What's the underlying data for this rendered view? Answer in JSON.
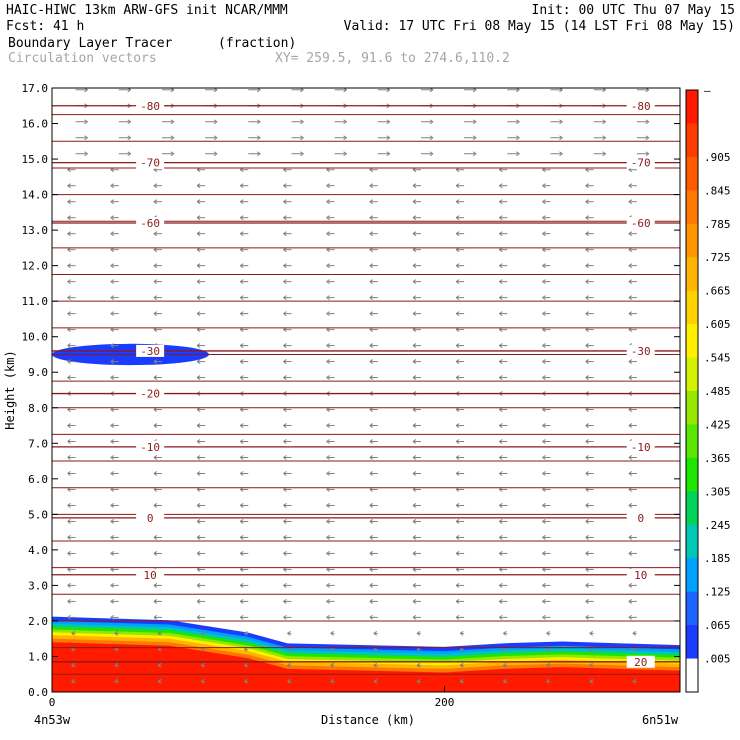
{
  "header": {
    "left_line1": "HAIC-HIWC 13km ARW-GFS init   NCAR/MMM",
    "left_line2": "Fcst:   41 h",
    "right_line1": "Init: 00 UTC Thu 07 May 15",
    "right_line2": "Valid: 17 UTC Fri 08 May 15 (14 LST Fri 08 May 15)",
    "field_name": "Boundary Layer Tracer",
    "field_units": "(fraction)",
    "vector_label": "Circulation vectors",
    "xy_label": "XY= 259.5, 91.6 to 274.6,110.2"
  },
  "colors": {
    "contour": "#8b1a1a",
    "vector": "#808080",
    "field_high": "#ff1a00",
    "field_low": "#1a3cff"
  },
  "chart_data": {
    "type": "heatmap",
    "title": "Boundary Layer Tracer",
    "xlabel": "Distance (km)",
    "ylabel": "Height (km)",
    "xlim": [
      0,
      320
    ],
    "ylim": [
      0,
      17
    ],
    "x_ticks": [
      {
        "value": 0,
        "label": "0"
      },
      {
        "value": 200,
        "label": "200"
      }
    ],
    "x_end_labels": {
      "left": "4n53w",
      "right": "6n51w"
    },
    "y_ticks": [
      "0.0",
      "1.0",
      "2.0",
      "3.0",
      "4.0",
      "5.0",
      "6.0",
      "7.0",
      "8.0",
      "9.0",
      "10.0",
      "11.0",
      "12.0",
      "13.0",
      "14.0",
      "15.0",
      "16.0",
      "17.0"
    ],
    "colorbar": {
      "top_label": "–",
      "labels": [
        ".905",
        ".845",
        ".785",
        ".725",
        ".665",
        ".605",
        ".545",
        ".485",
        ".425",
        ".365",
        ".305",
        ".245",
        ".185",
        ".125",
        ".065",
        ".005"
      ],
      "colors": [
        "#ff1a00",
        "#ff3c00",
        "#ff5a00",
        "#ff7800",
        "#ff9600",
        "#ffb400",
        "#ffd200",
        "#fff000",
        "#d2f000",
        "#96e600",
        "#5ae600",
        "#1ee600",
        "#00d25a",
        "#00c8b4",
        "#00a0ff",
        "#1e64ff",
        "#1a3cff",
        "#ffffff"
      ]
    },
    "temperature_contours": {
      "levels": [
        {
          "value": -80,
          "label": "-80",
          "y": 16.5,
          "label_positions": [
            "left",
            "right"
          ]
        },
        {
          "value": -70,
          "label": "-70",
          "y": 14.9,
          "label_positions": [
            "left",
            "right"
          ]
        },
        {
          "value": -60,
          "label": "-60",
          "y": 13.2,
          "label_positions": [
            "left",
            "right"
          ]
        },
        {
          "value": -30,
          "label": "-30",
          "y": 9.6,
          "label_positions": [
            "left",
            "right"
          ]
        },
        {
          "value": -20,
          "label": "-20",
          "y": 8.4,
          "label_positions": [
            "left"
          ]
        },
        {
          "value": -10,
          "label": "-10",
          "y": 6.9,
          "label_positions": [
            "left",
            "right"
          ]
        },
        {
          "value": 0,
          "label": "0",
          "y": 4.9,
          "label_positions": [
            "left",
            "right"
          ]
        },
        {
          "value": 10,
          "label": "10",
          "y": 3.3,
          "label_positions": [
            "left",
            "right"
          ]
        },
        {
          "value": 20,
          "label": "20",
          "y": 0.85,
          "label_positions": [
            "right"
          ]
        }
      ]
    },
    "tracer_field": {
      "blob_top_km": [
        2.0,
        1.9,
        1.55,
        1.25,
        1.2,
        1.15,
        1.25,
        1.3,
        1.25,
        1.2
      ],
      "blob_x_km": [
        0,
        60,
        100,
        120,
        160,
        200,
        230,
        260,
        290,
        320
      ],
      "upper_blob": {
        "x_center_km": 40,
        "y_center_km": 9.5,
        "x_half_km": 40,
        "y_half_km": 0.3,
        "value": 0.005
      }
    }
  }
}
